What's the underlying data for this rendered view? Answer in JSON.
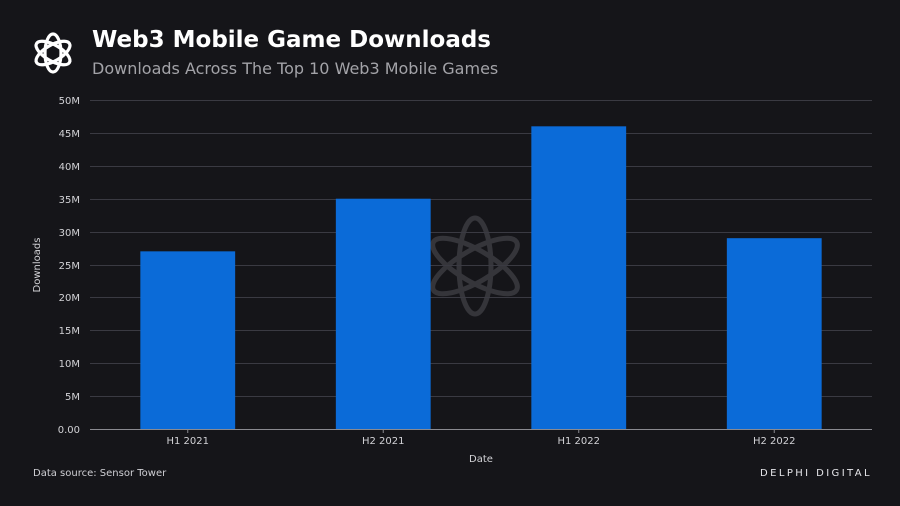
{
  "header": {
    "title": "Web3 Mobile Game Downloads",
    "subtitle": "Downloads Across The Top 10 Web3 Mobile Games"
  },
  "footer": {
    "source": "Data source: Sensor Tower",
    "brand": "DELPHI DIGITAL"
  },
  "colors": {
    "background": "#151519",
    "bar": "#0b6bd8",
    "grid": "#3a3a42",
    "axis_text": "#d2d2d6"
  },
  "chart_data": {
    "type": "bar",
    "title": "Web3 Mobile Game Downloads",
    "subtitle": "Downloads Across The Top 10 Web3 Mobile Games",
    "categories": [
      "H1 2021",
      "H2 2021",
      "H1 2022",
      "H2 2022"
    ],
    "values": [
      27000000,
      35000000,
      46000000,
      29000000
    ],
    "xlabel": "Date",
    "ylabel": "Downloads",
    "ylim": [
      0,
      50000000
    ],
    "yticks": [
      0,
      5000000,
      10000000,
      15000000,
      20000000,
      25000000,
      30000000,
      35000000,
      40000000,
      45000000,
      50000000
    ],
    "ytick_labels": [
      "0.00",
      "5M",
      "10M",
      "15M",
      "20M",
      "25M",
      "30M",
      "35M",
      "40M",
      "45M",
      "50M"
    ],
    "grid": true,
    "legend": "none"
  }
}
